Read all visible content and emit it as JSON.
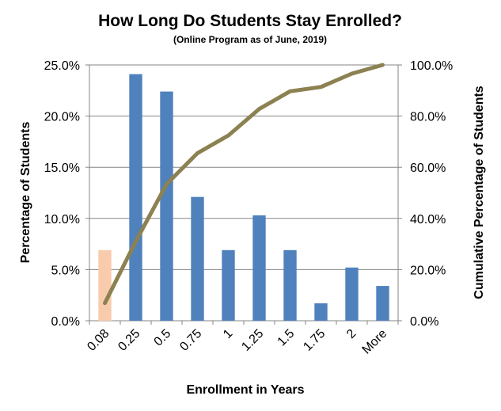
{
  "chart_data": {
    "type": "bar",
    "title": "How Long Do Students Stay Enrolled?",
    "subtitle": "(Online Program as of June, 2019)",
    "xlabel": "Enrollment in Years",
    "ylabel": "Percentage of Students",
    "y2label": "Cumulative Percentage of Students",
    "categories": [
      "0.08",
      "0.25",
      "0.5",
      "0.75",
      "1",
      "1.25",
      "1.5",
      "1.75",
      "2",
      "More"
    ],
    "ylim": [
      0,
      25
    ],
    "y2lim": [
      0,
      100
    ],
    "yticks": [
      "0.0%",
      "5.0%",
      "10.0%",
      "15.0%",
      "20.0%",
      "25.0%"
    ],
    "y2ticks": [
      "0.0%",
      "20.0%",
      "40.0%",
      "60.0%",
      "80.0%",
      "100.0%"
    ],
    "grid": true,
    "legend": "none",
    "series": [
      {
        "type": "bar",
        "axis": "left",
        "values": [
          6.9,
          24.1,
          22.4,
          12.1,
          6.9,
          10.3,
          6.9,
          1.7,
          5.2,
          3.4
        ],
        "colors": [
          "#F8CBAD",
          "#4F81BD",
          "#4F81BD",
          "#4F81BD",
          "#4F81BD",
          "#4F81BD",
          "#4F81BD",
          "#4F81BD",
          "#4F81BD",
          "#4F81BD"
        ]
      },
      {
        "type": "line",
        "axis": "right",
        "values": [
          6.9,
          31.0,
          53.4,
          65.5,
          72.4,
          82.8,
          89.7,
          91.4,
          96.6,
          100.0
        ],
        "color": "#8C8151"
      }
    ]
  }
}
